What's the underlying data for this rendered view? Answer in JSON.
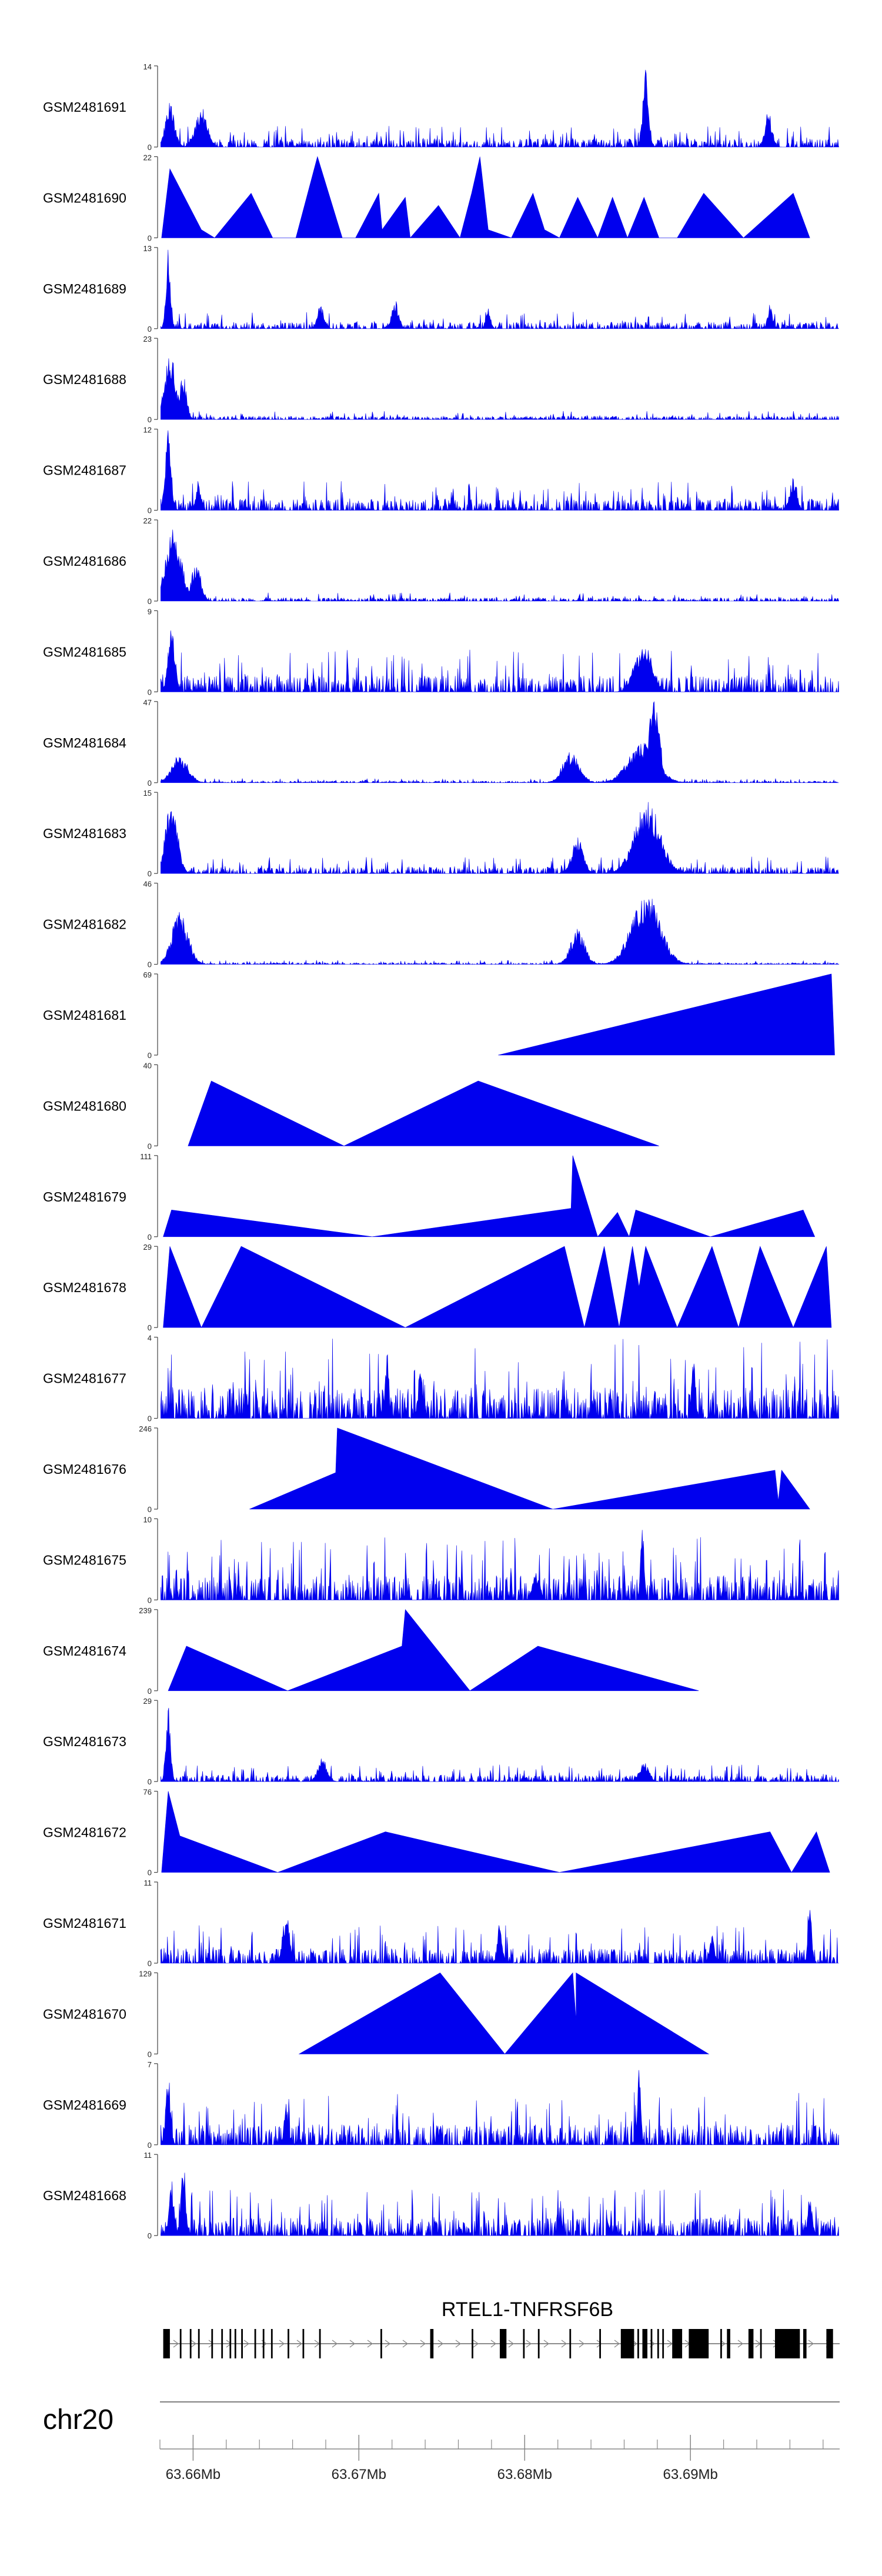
{
  "chart_data": {
    "type": "area",
    "title": "",
    "chromosome": "chr20",
    "gene": {
      "name": "RTEL1-TNFRSF6B",
      "start": 63.6581,
      "end": 63.6977,
      "strand": "+"
    },
    "x_range_mb": [
      63.658,
      63.699
    ],
    "x_ticks": [
      {
        "value": 63.66,
        "label": "63.66Mb"
      },
      {
        "value": 63.67,
        "label": "63.67Mb"
      },
      {
        "value": 63.68,
        "label": "63.68Mb"
      },
      {
        "value": 63.69,
        "label": "63.69Mb"
      }
    ],
    "fill_color": "#0000ee",
    "tracks": [
      {
        "name": "GSM2481691",
        "ymax": "14",
        "max": 14,
        "profile": "noise",
        "seed": 11,
        "base": 0.1,
        "peaks": [
          [
            63.6586,
            0.55,
            0.0004
          ],
          [
            63.6605,
            0.5,
            0.0005
          ],
          [
            63.6873,
            1.0,
            0.00025
          ],
          [
            63.6947,
            0.45,
            0.0003
          ]
        ]
      },
      {
        "name": "GSM2481690",
        "ymax": "22",
        "max": 22,
        "profile": "pts",
        "pts": [
          [
            63.6581,
            0
          ],
          [
            63.6586,
            0.85
          ],
          [
            63.6605,
            0.1
          ],
          [
            63.6613,
            0
          ],
          [
            63.6635,
            0.55
          ],
          [
            63.6648,
            0
          ],
          [
            63.6662,
            0
          ],
          [
            63.6675,
            1.0
          ],
          [
            63.669,
            0
          ],
          [
            63.6698,
            0
          ],
          [
            63.6712,
            0.55
          ],
          [
            63.6714,
            0.1
          ],
          [
            63.6728,
            0.5
          ],
          [
            63.6731,
            0
          ],
          [
            63.6748,
            0.4
          ],
          [
            63.6761,
            0
          ],
          [
            63.6768,
            0.55
          ],
          [
            63.6773,
            1.0
          ],
          [
            63.6778,
            0.1
          ],
          [
            63.6792,
            0
          ],
          [
            63.6805,
            0.55
          ],
          [
            63.6812,
            0.1
          ],
          [
            63.6821,
            0
          ],
          [
            63.6832,
            0.5
          ],
          [
            63.6844,
            0
          ],
          [
            63.6853,
            0.5
          ],
          [
            63.6862,
            0
          ],
          [
            63.6872,
            0.5
          ],
          [
            63.6881,
            0
          ],
          [
            63.6892,
            0
          ],
          [
            63.6908,
            0.55
          ],
          [
            63.6932,
            0
          ],
          [
            63.6962,
            0.55
          ],
          [
            63.6972,
            0
          ]
        ]
      },
      {
        "name": "GSM2481689",
        "ymax": "13",
        "max": 13,
        "profile": "noise",
        "seed": 23,
        "base": 0.08,
        "peaks": [
          [
            63.6585,
            1.0,
            0.0002
          ],
          [
            63.6677,
            0.3,
            0.0003
          ],
          [
            63.6722,
            0.35,
            0.0003
          ],
          [
            63.6778,
            0.28,
            0.0002
          ],
          [
            63.6948,
            0.3,
            0.0002
          ]
        ]
      },
      {
        "name": "GSM2481688",
        "ymax": "23",
        "max": 23,
        "profile": "noise",
        "seed": 37,
        "base": 0.04,
        "peaks": [
          [
            63.6586,
            0.85,
            0.0005
          ],
          [
            63.6594,
            0.55,
            0.0003
          ]
        ]
      },
      {
        "name": "GSM2481687",
        "ymax": "12",
        "max": 12,
        "profile": "noise",
        "seed": 41,
        "base": 0.14,
        "peaks": [
          [
            63.6585,
            1.0,
            0.00025
          ],
          [
            63.6603,
            0.35,
            0.0002
          ],
          [
            63.6962,
            0.4,
            0.0003
          ]
        ]
      },
      {
        "name": "GSM2481686",
        "ymax": "22",
        "max": 22,
        "profile": "noise",
        "seed": 53,
        "base": 0.04,
        "peaks": [
          [
            63.6588,
            0.9,
            0.0007
          ],
          [
            63.6602,
            0.5,
            0.0004
          ]
        ]
      },
      {
        "name": "GSM2481685",
        "ymax": "9",
        "max": 9,
        "profile": "noise",
        "seed": 61,
        "base": 0.2,
        "peaks": [
          [
            63.6587,
            0.8,
            0.0003
          ],
          [
            63.6872,
            0.6,
            0.0007
          ],
          [
            63.6867,
            0.45,
            0.0004
          ]
        ]
      },
      {
        "name": "GSM2481684",
        "ymax": "47",
        "max": 47,
        "profile": "noise",
        "seed": 71,
        "base": 0.02,
        "peaks": [
          [
            63.6592,
            0.35,
            0.0007
          ],
          [
            63.6828,
            0.4,
            0.0007
          ],
          [
            63.6871,
            0.5,
            0.0012
          ],
          [
            63.6878,
            1.0,
            0.0005
          ]
        ]
      },
      {
        "name": "GSM2481683",
        "ymax": "15",
        "max": 15,
        "profile": "noise",
        "seed": 83,
        "base": 0.08,
        "peaks": [
          [
            63.6587,
            0.95,
            0.0005
          ],
          [
            63.6832,
            0.45,
            0.0005
          ],
          [
            63.6874,
            0.9,
            0.0011
          ]
        ]
      },
      {
        "name": "GSM2481682",
        "ymax": "46",
        "max": 46,
        "profile": "noise",
        "seed": 97,
        "base": 0.02,
        "peaks": [
          [
            63.6592,
            0.65,
            0.0007
          ],
          [
            63.6832,
            0.45,
            0.0006
          ],
          [
            63.6873,
            0.9,
            0.0012
          ]
        ]
      },
      {
        "name": "GSM2481681",
        "ymax": "69",
        "max": 69,
        "profile": "pts",
        "pts": [
          [
            63.6784,
            0
          ],
          [
            63.6985,
            1.0
          ],
          [
            63.6987,
            0
          ]
        ]
      },
      {
        "name": "GSM2481680",
        "ymax": "40",
        "max": 40,
        "profile": "pts",
        "pts": [
          [
            63.6597,
            0
          ],
          [
            63.6611,
            0.8
          ],
          [
            63.6691,
            0
          ],
          [
            63.6772,
            0.8
          ],
          [
            63.6881,
            0
          ]
        ]
      },
      {
        "name": "GSM2481679",
        "ymax": "111",
        "max": 111,
        "profile": "pts",
        "pts": [
          [
            63.6582,
            0
          ],
          [
            63.6587,
            0.33
          ],
          [
            63.6708,
            0
          ],
          [
            63.6828,
            0.35
          ],
          [
            63.6829,
            1.0
          ],
          [
            63.6844,
            0
          ],
          [
            63.6856,
            0.3
          ],
          [
            63.6863,
            0
          ],
          [
            63.6867,
            0.33
          ],
          [
            63.6912,
            0
          ],
          [
            63.6968,
            0.33
          ],
          [
            63.6975,
            0
          ]
        ]
      },
      {
        "name": "GSM2481678",
        "ymax": "29",
        "max": 29,
        "profile": "pts",
        "pts": [
          [
            63.6582,
            0
          ],
          [
            63.6586,
            1.0
          ],
          [
            63.6605,
            0
          ],
          [
            63.6629,
            1.0
          ],
          [
            63.6728,
            0
          ],
          [
            63.6824,
            1.0
          ],
          [
            63.6836,
            0
          ],
          [
            63.6848,
            1.0
          ],
          [
            63.6857,
            0
          ],
          [
            63.6865,
            1.0
          ],
          [
            63.6869,
            0.5
          ],
          [
            63.6873,
            1.0
          ],
          [
            63.6892,
            0
          ],
          [
            63.6913,
            1.0
          ],
          [
            63.6929,
            0
          ],
          [
            63.6942,
            1.0
          ],
          [
            63.6962,
            0
          ],
          [
            63.6982,
            1.0
          ],
          [
            63.6985,
            0
          ]
        ]
      },
      {
        "name": "GSM2481677",
        "ymax": "4",
        "max": 4,
        "profile": "noise",
        "seed": 101,
        "base": 0.38,
        "peaks": [
          [
            63.6717,
            0.9,
            0.00015
          ],
          [
            63.6902,
            0.85,
            0.00015
          ],
          [
            63.6737,
            0.6,
            0.0002
          ]
        ]
      },
      {
        "name": "GSM2481676",
        "ymax": "246",
        "max": 246,
        "profile": "pts",
        "pts": [
          [
            63.6634,
            0
          ],
          [
            63.6686,
            0.45
          ],
          [
            63.6687,
            1.0
          ],
          [
            63.6817,
            0
          ],
          [
            63.6951,
            0.48
          ],
          [
            63.6953,
            0.1
          ],
          [
            63.6955,
            0.48
          ],
          [
            63.6972,
            0
          ]
        ]
      },
      {
        "name": "GSM2481675",
        "ymax": "10",
        "max": 10,
        "profile": "noise",
        "seed": 113,
        "base": 0.3,
        "peaks": [
          [
            63.6871,
            1.0,
            0.00015
          ],
          [
            63.6807,
            0.35,
            0.0003
          ]
        ]
      },
      {
        "name": "GSM2481674",
        "ymax": "239",
        "max": 239,
        "profile": "pts",
        "pts": [
          [
            63.6585,
            0
          ],
          [
            63.6596,
            0.55
          ],
          [
            63.6657,
            0
          ],
          [
            63.6726,
            0.55
          ],
          [
            63.6728,
            1.0
          ],
          [
            63.6767,
            0
          ],
          [
            63.6808,
            0.55
          ],
          [
            63.6905,
            0
          ]
        ]
      },
      {
        "name": "GSM2481673",
        "ymax": "29",
        "max": 29,
        "profile": "noise",
        "seed": 127,
        "base": 0.08,
        "peaks": [
          [
            63.6585,
            1.0,
            0.0002
          ],
          [
            63.6678,
            0.3,
            0.0004
          ],
          [
            63.6872,
            0.25,
            0.0004
          ]
        ]
      },
      {
        "name": "GSM2481672",
        "ymax": "76",
        "max": 76,
        "profile": "pts",
        "pts": [
          [
            63.6581,
            0
          ],
          [
            63.6585,
            1.0
          ],
          [
            63.6592,
            0.45
          ],
          [
            63.6651,
            0
          ],
          [
            63.6716,
            0.5
          ],
          [
            63.6821,
            0
          ],
          [
            63.6948,
            0.5
          ],
          [
            63.6961,
            0
          ],
          [
            63.6976,
            0.5
          ],
          [
            63.6984,
            0
          ]
        ]
      },
      {
        "name": "GSM2481671",
        "ymax": "11",
        "max": 11,
        "profile": "noise",
        "seed": 139,
        "base": 0.18,
        "peaks": [
          [
            63.6656,
            0.65,
            0.0003
          ],
          [
            63.6972,
            1.0,
            0.00015
          ],
          [
            63.6785,
            0.5,
            0.0002
          ],
          [
            63.6913,
            0.4,
            0.0002
          ]
        ]
      },
      {
        "name": "GSM2481670",
        "ymax": "129",
        "max": 129,
        "profile": "pts",
        "pts": [
          [
            63.6664,
            0
          ],
          [
            63.6749,
            1.0
          ],
          [
            63.6788,
            0
          ],
          [
            63.6829,
            1.0
          ],
          [
            63.6831,
            0.4
          ],
          [
            63.6831,
            1.0
          ],
          [
            63.6911,
            0
          ]
        ]
      },
      {
        "name": "GSM2481669",
        "ymax": "7",
        "max": 7,
        "profile": "noise",
        "seed": 151,
        "base": 0.25,
        "peaks": [
          [
            63.6585,
            0.9,
            0.0002
          ],
          [
            63.6869,
            1.0,
            0.00015
          ],
          [
            63.6656,
            0.65,
            0.00015
          ]
        ]
      },
      {
        "name": "GSM2481668",
        "ymax": "11",
        "max": 11,
        "profile": "noise",
        "seed": 163,
        "base": 0.22,
        "peaks": [
          [
            63.6594,
            1.0,
            0.0002
          ],
          [
            63.6587,
            0.7,
            0.0002
          ],
          [
            63.6972,
            0.5,
            0.0002
          ]
        ]
      }
    ],
    "exons": [
      {
        "s": 63.6582,
        "e": 63.6586
      },
      {
        "s": 63.6592,
        "e": 63.6593
      },
      {
        "s": 63.6598,
        "e": 63.6599
      },
      {
        "s": 63.6603,
        "e": 63.6604
      },
      {
        "s": 63.6611,
        "e": 63.6612
      },
      {
        "s": 63.6617,
        "e": 63.6618
      },
      {
        "s": 63.6622,
        "e": 63.6623
      },
      {
        "s": 63.6625,
        "e": 63.6626
      },
      {
        "s": 63.6629,
        "e": 63.663
      },
      {
        "s": 63.6637,
        "e": 63.6638
      },
      {
        "s": 63.6642,
        "e": 63.6643
      },
      {
        "s": 63.6647,
        "e": 63.6648
      },
      {
        "s": 63.6657,
        "e": 63.6658
      },
      {
        "s": 63.6666,
        "e": 63.6667
      },
      {
        "s": 63.6676,
        "e": 63.6677
      },
      {
        "s": 63.6713,
        "e": 63.6714
      },
      {
        "s": 63.6743,
        "e": 63.6745
      },
      {
        "s": 63.6768,
        "e": 63.6769
      },
      {
        "s": 63.6785,
        "e": 63.6789
      },
      {
        "s": 63.6799,
        "e": 63.68
      },
      {
        "s": 63.6808,
        "e": 63.6809
      },
      {
        "s": 63.6827,
        "e": 63.6828
      },
      {
        "s": 63.6845,
        "e": 63.6846
      },
      {
        "s": 63.6858,
        "e": 63.6866
      },
      {
        "s": 63.6868,
        "e": 63.6869
      },
      {
        "s": 63.6871,
        "e": 63.6874
      },
      {
        "s": 63.6876,
        "e": 63.6877
      },
      {
        "s": 63.688,
        "e": 63.6881
      },
      {
        "s": 63.6883,
        "e": 63.6884
      },
      {
        "s": 63.6889,
        "e": 63.6895
      },
      {
        "s": 63.6899,
        "e": 63.6911
      },
      {
        "s": 63.6918,
        "e": 63.6919
      },
      {
        "s": 63.6922,
        "e": 63.6924
      },
      {
        "s": 63.6935,
        "e": 63.6938
      },
      {
        "s": 63.6942,
        "e": 63.6943
      },
      {
        "s": 63.6951,
        "e": 63.6966
      },
      {
        "s": 63.6968,
        "e": 63.697
      },
      {
        "s": 63.6982,
        "e": 63.6986
      }
    ],
    "ruler_minor_step_mb": 0.002
  }
}
